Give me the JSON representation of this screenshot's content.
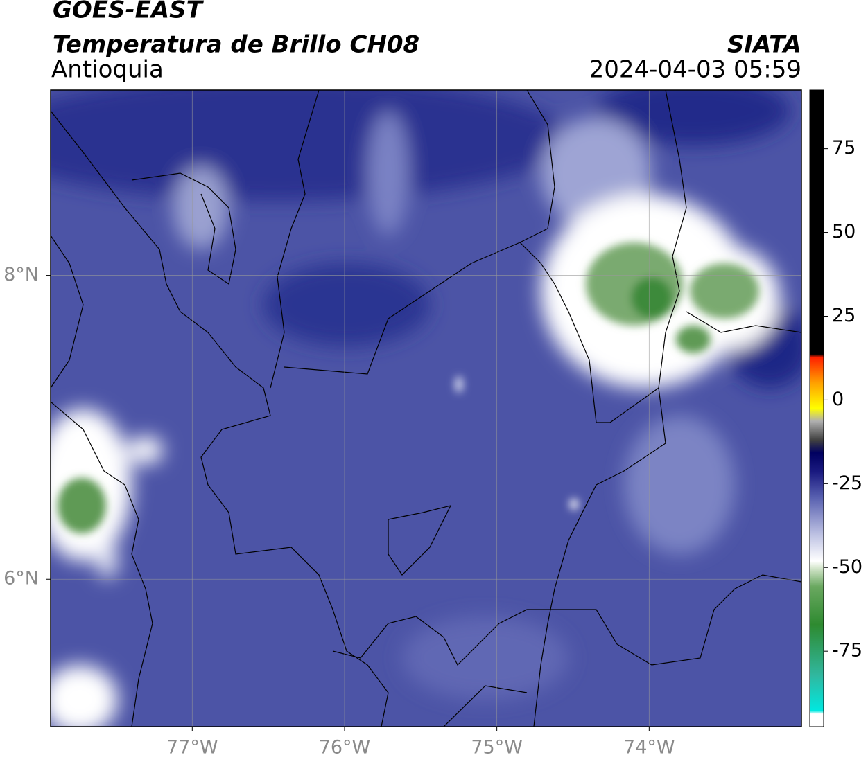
{
  "chart_data": {
    "type": "map",
    "title": "GOES-EAST",
    "subtitle": "Temperatura de Brillo CH08",
    "region": "Antioquia",
    "source": "SIATA",
    "datetime": "2024-04-03 05:59",
    "xlim": [
      -77.93,
      -73.0
    ],
    "ylim": [
      5.03,
      9.22
    ],
    "xticks": [
      {
        "value": -77,
        "label": "77°W"
      },
      {
        "value": -76,
        "label": "76°W"
      },
      {
        "value": -75,
        "label": "75°W"
      },
      {
        "value": -74,
        "label": "74°W"
      }
    ],
    "yticks": [
      {
        "value": 8,
        "label": "8°N"
      },
      {
        "value": 6,
        "label": "6°N"
      }
    ],
    "grid": true,
    "colorbar": {
      "clim": [
        -97.5,
        92.5
      ],
      "ticks": [
        75,
        50,
        25,
        0,
        -25,
        -50,
        -75
      ]
    }
  }
}
